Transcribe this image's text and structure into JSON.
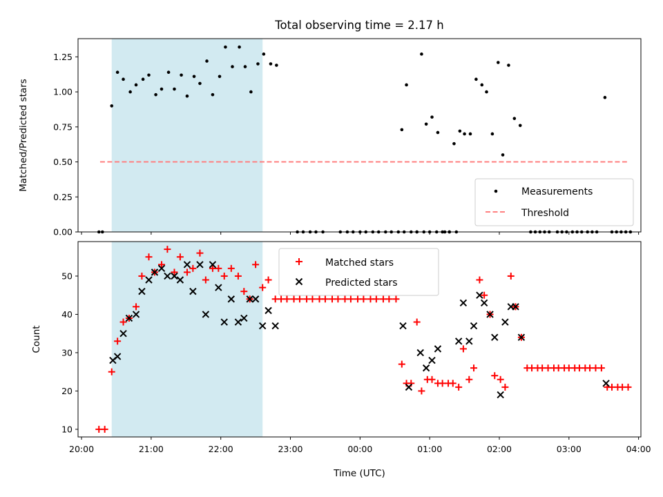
{
  "chart_data": [
    {
      "type": "scatter",
      "title": "Total observing time = 2.17 h",
      "ylabel": "Matched/Predicted stars",
      "ylim": [
        0,
        1.38
      ],
      "xlim": [
        "20:00",
        "04:00"
      ],
      "yticks": [
        "0.00",
        "0.25",
        "0.50",
        "0.75",
        "1.00",
        "1.25"
      ],
      "shaded_span": [
        "20:26",
        "22:36"
      ],
      "shade_color": "#add8e6",
      "legend_position": "lower right",
      "series": [
        {
          "name": "Measurements",
          "marker": "dot",
          "color": "#000000",
          "points": [
            [
              "20:15",
              0
            ],
            [
              "20:18",
              0
            ],
            [
              "20:26",
              0.9
            ],
            [
              "20:31",
              1.14
            ],
            [
              "20:36",
              1.09
            ],
            [
              "20:42",
              1.0
            ],
            [
              "20:47",
              1.05
            ],
            [
              "20:53",
              1.09
            ],
            [
              "20:58",
              1.12
            ],
            [
              "21:04",
              0.98
            ],
            [
              "21:09",
              1.02
            ],
            [
              "21:15",
              1.14
            ],
            [
              "21:20",
              1.02
            ],
            [
              "21:26",
              1.12
            ],
            [
              "21:31",
              0.97
            ],
            [
              "21:37",
              1.11
            ],
            [
              "21:42",
              1.06
            ],
            [
              "21:48",
              1.22
            ],
            [
              "21:53",
              0.98
            ],
            [
              "21:59",
              1.11
            ],
            [
              "22:04",
              1.32
            ],
            [
              "22:10",
              1.18
            ],
            [
              "22:16",
              1.32
            ],
            [
              "22:21",
              1.18
            ],
            [
              "22:26",
              1.0
            ],
            [
              "22:32",
              1.2
            ],
            [
              "22:37",
              1.27
            ],
            [
              "22:43",
              1.2
            ],
            [
              "22:48",
              1.19
            ],
            [
              "23:06",
              0
            ],
            [
              "23:11",
              0
            ],
            [
              "23:17",
              0
            ],
            [
              "23:22",
              0
            ],
            [
              "23:28",
              0
            ],
            [
              "23:43",
              0
            ],
            [
              "23:49",
              0
            ],
            [
              "23:54",
              0
            ],
            [
              "00:00",
              0
            ],
            [
              "00:05",
              0
            ],
            [
              "00:11",
              0
            ],
            [
              "00:16",
              0
            ],
            [
              "00:22",
              0
            ],
            [
              "00:27",
              0
            ],
            [
              "00:33",
              0
            ],
            [
              "00:38",
              0
            ],
            [
              "00:44",
              0
            ],
            [
              "00:49",
              0
            ],
            [
              "00:55",
              0
            ],
            [
              "01:00",
              0
            ],
            [
              "01:06",
              0
            ],
            [
              "01:11",
              0
            ],
            [
              "01:17",
              0
            ],
            [
              "01:23",
              0
            ],
            [
              "00:36",
              0.73
            ],
            [
              "00:40",
              1.05
            ],
            [
              "00:49",
              0
            ],
            [
              "00:53",
              1.27
            ],
            [
              "00:57",
              0.77
            ],
            [
              "01:02",
              0.82
            ],
            [
              "01:07",
              0.71
            ],
            [
              "01:13",
              0
            ],
            [
              "01:17",
              0
            ],
            [
              "01:21",
              0.63
            ],
            [
              "01:26",
              0.72
            ],
            [
              "01:30",
              0.7
            ],
            [
              "01:35",
              0.7
            ],
            [
              "01:40",
              1.09
            ],
            [
              "01:45",
              1.05
            ],
            [
              "01:49",
              1.0
            ],
            [
              "01:54",
              0.7
            ],
            [
              "01:59",
              1.21
            ],
            [
              "02:03",
              0.55
            ],
            [
              "02:08",
              1.19
            ],
            [
              "02:13",
              0.81
            ],
            [
              "02:18",
              0.76
            ],
            [
              "02:27",
              0
            ],
            [
              "02:31",
              0
            ],
            [
              "02:35",
              0
            ],
            [
              "02:39",
              0
            ],
            [
              "02:43",
              0
            ],
            [
              "02:50",
              0
            ],
            [
              "02:54",
              0
            ],
            [
              "02:58",
              0
            ],
            [
              "03:03",
              0
            ],
            [
              "03:07",
              0
            ],
            [
              "03:11",
              0
            ],
            [
              "03:16",
              0
            ],
            [
              "03:20",
              0
            ],
            [
              "03:24",
              0
            ],
            [
              "03:31",
              0.96
            ],
            [
              "03:37",
              0
            ],
            [
              "03:41",
              0
            ],
            [
              "03:45",
              0
            ],
            [
              "03:49",
              0
            ],
            [
              "03:53",
              0
            ]
          ]
        },
        {
          "name": "Threshold",
          "kind": "dashed-line",
          "color": "#ff7f7f",
          "points": [
            [
              "20:16",
              0.5
            ],
            [
              "03:50",
              0.5
            ]
          ]
        }
      ]
    },
    {
      "type": "scatter",
      "xlabel": "Time (UTC)",
      "ylabel": "Count",
      "ylim": [
        8,
        59
      ],
      "xlim": [
        "20:00",
        "04:00"
      ],
      "yticks": [
        "10",
        "20",
        "30",
        "40",
        "50"
      ],
      "xticks": [
        "20:00",
        "21:00",
        "22:00",
        "23:00",
        "00:00",
        "01:00",
        "02:00",
        "03:00",
        "04:00"
      ],
      "shaded_span": [
        "20:26",
        "22:36"
      ],
      "shade_color": "#add8e6",
      "legend_position": "upper center",
      "series": [
        {
          "name": "Matched stars",
          "marker": "plus",
          "color": "#ff0000",
          "points": [
            [
              "20:15",
              10
            ],
            [
              "20:20",
              10
            ],
            [
              "20:26",
              25
            ],
            [
              "20:31",
              33
            ],
            [
              "20:36",
              38
            ],
            [
              "20:41",
              39
            ],
            [
              "20:47",
              42
            ],
            [
              "20:52",
              50
            ],
            [
              "20:58",
              55
            ],
            [
              "21:03",
              51
            ],
            [
              "21:09",
              53
            ],
            [
              "21:14",
              57
            ],
            [
              "21:20",
              51
            ],
            [
              "21:25",
              55
            ],
            [
              "21:31",
              51
            ],
            [
              "21:36",
              52
            ],
            [
              "21:42",
              56
            ],
            [
              "21:47",
              49
            ],
            [
              "21:53",
              52
            ],
            [
              "21:58",
              52
            ],
            [
              "22:03",
              50
            ],
            [
              "22:09",
              52
            ],
            [
              "22:15",
              50
            ],
            [
              "22:20",
              46
            ],
            [
              "22:25",
              44
            ],
            [
              "22:30",
              53
            ],
            [
              "22:36",
              47
            ],
            [
              "22:41",
              49
            ],
            [
              "22:47",
              44
            ],
            [
              "22:52",
              44
            ],
            [
              "22:57",
              44
            ],
            [
              "23:03",
              44
            ],
            [
              "23:08",
              44
            ],
            [
              "23:14",
              44
            ],
            [
              "23:19",
              44
            ],
            [
              "23:25",
              44
            ],
            [
              "23:30",
              44
            ],
            [
              "23:36",
              44
            ],
            [
              "23:41",
              44
            ],
            [
              "23:47",
              44
            ],
            [
              "23:52",
              44
            ],
            [
              "23:58",
              44
            ],
            [
              "00:03",
              44
            ],
            [
              "00:09",
              44
            ],
            [
              "00:14",
              44
            ],
            [
              "00:20",
              44
            ],
            [
              "00:25",
              44
            ],
            [
              "00:31",
              44
            ],
            [
              "00:36",
              27
            ],
            [
              "00:40",
              22
            ],
            [
              "00:44",
              22
            ],
            [
              "00:49",
              38
            ],
            [
              "00:53",
              20
            ],
            [
              "00:58",
              23
            ],
            [
              "01:02",
              23
            ],
            [
              "01:07",
              22
            ],
            [
              "01:11",
              22
            ],
            [
              "01:16",
              22
            ],
            [
              "01:20",
              22
            ],
            [
              "01:25",
              21
            ],
            [
              "01:29",
              31
            ],
            [
              "01:34",
              23
            ],
            [
              "01:38",
              26
            ],
            [
              "01:43",
              49
            ],
            [
              "01:47",
              45
            ],
            [
              "01:52",
              40
            ],
            [
              "01:56",
              24
            ],
            [
              "02:01",
              23
            ],
            [
              "02:05",
              21
            ],
            [
              "02:10",
              50
            ],
            [
              "02:14",
              42
            ],
            [
              "02:19",
              34
            ],
            [
              "02:24",
              26
            ],
            [
              "02:28",
              26
            ],
            [
              "02:33",
              26
            ],
            [
              "02:37",
              26
            ],
            [
              "02:42",
              26
            ],
            [
              "02:47",
              26
            ],
            [
              "02:51",
              26
            ],
            [
              "02:56",
              26
            ],
            [
              "03:00",
              26
            ],
            [
              "03:05",
              26
            ],
            [
              "03:09",
              26
            ],
            [
              "03:14",
              26
            ],
            [
              "03:18",
              26
            ],
            [
              "03:23",
              26
            ],
            [
              "03:28",
              26
            ],
            [
              "03:33",
              21
            ],
            [
              "03:37",
              21
            ],
            [
              "03:42",
              21
            ],
            [
              "03:46",
              21
            ],
            [
              "03:51",
              21
            ]
          ]
        },
        {
          "name": "Predicted stars",
          "marker": "x",
          "color": "#000000",
          "points": [
            [
              "20:27",
              28
            ],
            [
              "20:31",
              29
            ],
            [
              "20:36",
              35
            ],
            [
              "20:41",
              39
            ],
            [
              "20:47",
              40
            ],
            [
              "20:52",
              46
            ],
            [
              "20:58",
              49
            ],
            [
              "21:03",
              51
            ],
            [
              "21:09",
              52
            ],
            [
              "21:14",
              50
            ],
            [
              "21:20",
              50
            ],
            [
              "21:25",
              49
            ],
            [
              "21:31",
              53
            ],
            [
              "21:36",
              46
            ],
            [
              "21:42",
              53
            ],
            [
              "21:47",
              40
            ],
            [
              "21:53",
              53
            ],
            [
              "21:58",
              47
            ],
            [
              "22:03",
              38
            ],
            [
              "22:09",
              44
            ],
            [
              "22:15",
              38
            ],
            [
              "22:20",
              39
            ],
            [
              "22:25",
              44
            ],
            [
              "22:30",
              44
            ],
            [
              "22:36",
              37
            ],
            [
              "22:41",
              41
            ],
            [
              "22:47",
              37
            ],
            [
              "00:37",
              37
            ],
            [
              "00:42",
              21
            ],
            [
              "00:52",
              30
            ],
            [
              "00:57",
              26
            ],
            [
              "01:02",
              28
            ],
            [
              "01:07",
              31
            ],
            [
              "01:25",
              33
            ],
            [
              "01:29",
              43
            ],
            [
              "01:34",
              33
            ],
            [
              "01:38",
              37
            ],
            [
              "01:43",
              45
            ],
            [
              "01:47",
              43
            ],
            [
              "01:52",
              40
            ],
            [
              "01:56",
              34
            ],
            [
              "02:01",
              19
            ],
            [
              "02:05",
              38
            ],
            [
              "02:10",
              42
            ],
            [
              "02:14",
              42
            ],
            [
              "02:19",
              34
            ],
            [
              "03:32",
              22
            ]
          ]
        }
      ]
    }
  ]
}
